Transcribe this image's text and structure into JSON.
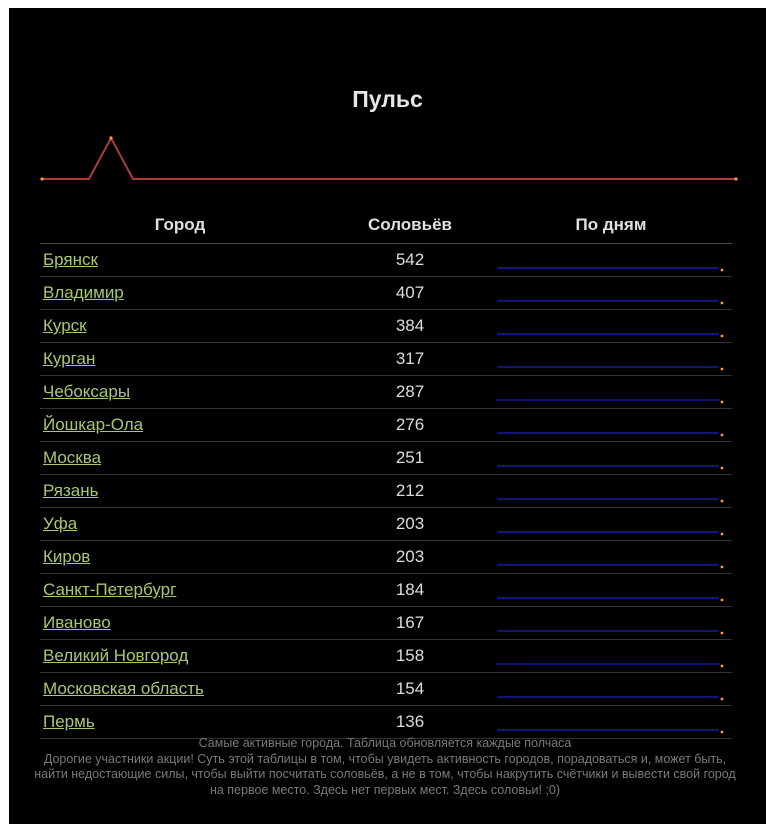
{
  "page": {
    "title": "Пульс",
    "pulse_color": "#b03a3a",
    "link_color": "#a8c86e",
    "sparkline_color": "#1a1aa0",
    "sparkline_dot_color": "#ff9933"
  },
  "table": {
    "headers": {
      "city": "Город",
      "count": "Соловьёв",
      "by_days": "По дням"
    },
    "rows": [
      {
        "city": "Брянск",
        "count": "542"
      },
      {
        "city": "Владимир",
        "count": "407"
      },
      {
        "city": "Курск",
        "count": "384"
      },
      {
        "city": "Курган",
        "count": "317"
      },
      {
        "city": "Чебоксары",
        "count": "287"
      },
      {
        "city": "Йошкар-Ола",
        "count": "276"
      },
      {
        "city": "Москва",
        "count": "251"
      },
      {
        "city": "Рязань",
        "count": "212"
      },
      {
        "city": "Уфа",
        "count": "203"
      },
      {
        "city": "Киров",
        "count": "203"
      },
      {
        "city": "Санкт-Петербург",
        "count": "184"
      },
      {
        "city": "Иваново",
        "count": "167"
      },
      {
        "city": "Великий Новгород",
        "count": "158"
      },
      {
        "city": "Московская область",
        "count": "154"
      },
      {
        "city": "Пермь",
        "count": "136"
      }
    ]
  },
  "footer": {
    "line1": "Самые активные города. Таблица обновляется каждые полчаса",
    "line2": "Дорогие участники акции! Суть этой таблицы в том, чтобы увидеть активность городов, порадоваться и, может быть, найти недостающие силы, чтобы выйти посчитать соловьёв, а не в том, чтобы накрутить счётчики и вывести свой город на первое место. Здесь нет первых мест. Здесь соловьи! ;0)"
  }
}
